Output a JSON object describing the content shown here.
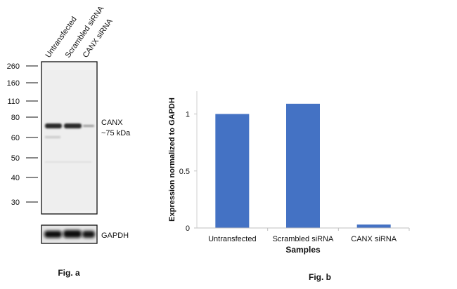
{
  "fig_a": {
    "caption": "Fig. a",
    "lanes": [
      "Untransfected",
      "Scrambled siRNA",
      "CANX siRNA"
    ],
    "markers": [
      "260",
      "160",
      "110",
      "80",
      "60",
      "50",
      "40",
      "30"
    ],
    "band_label": "CANX",
    "band_size": "~75 kDa",
    "loading_label": "GAPDH"
  },
  "fig_b": {
    "caption": "Fig. b"
  },
  "chart_data": {
    "type": "bar",
    "categories": [
      "Untransfected",
      "Scrambled siRNA",
      "CANX siRNA"
    ],
    "values": [
      1.0,
      1.09,
      0.03
    ],
    "xlabel": "Samples",
    "ylabel": "Expression normalized to GAPDH",
    "ylim": [
      0,
      1.2
    ],
    "yticks": [
      0,
      0.5,
      1
    ],
    "ytick_labels": [
      "0",
      "0.5",
      "1"
    ],
    "grid": false,
    "bar_color": "#4472C4"
  }
}
